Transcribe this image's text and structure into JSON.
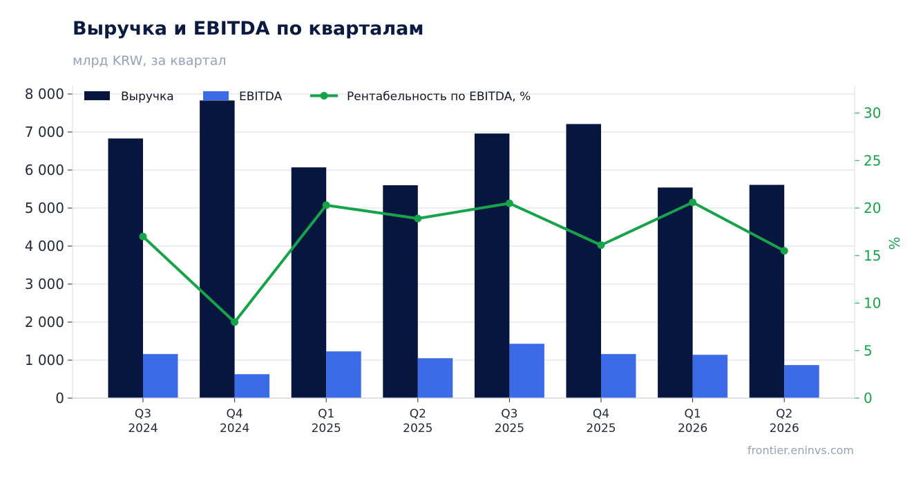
{
  "header": {
    "title": "Выручка и EBITDA по кварталам",
    "subtitle": "млрд KRW, за квартал"
  },
  "footer": {
    "source": "frontier.eninvs.com"
  },
  "colors": {
    "revenue": "#06163f",
    "ebitda": "#3b6be6",
    "margin": "#16a34a",
    "grid": "#e3e7ef"
  },
  "chart_data": {
    "type": "bar",
    "categories": [
      [
        "Q3",
        "2024"
      ],
      [
        "Q4",
        "2024"
      ],
      [
        "Q1",
        "2025"
      ],
      [
        "Q2",
        "2025"
      ],
      [
        "Q3",
        "2025"
      ],
      [
        "Q4",
        "2025"
      ],
      [
        "Q1",
        "2026"
      ],
      [
        "Q2",
        "2026"
      ]
    ],
    "series": [
      {
        "name": "Выручка",
        "type": "bar",
        "axis": "left",
        "values": [
          6830,
          7830,
          6070,
          5600,
          6960,
          7210,
          5540,
          5610
        ]
      },
      {
        "name": "EBITDA",
        "type": "bar",
        "axis": "left",
        "values": [
          1160,
          630,
          1230,
          1050,
          1430,
          1160,
          1140,
          870
        ]
      },
      {
        "name": "Рентабельность по EBITDA, %",
        "type": "line",
        "axis": "right",
        "values": [
          17.0,
          8.0,
          20.3,
          18.9,
          20.5,
          16.1,
          20.6,
          15.5
        ]
      }
    ],
    "y_left": {
      "min": 0,
      "max": 8000,
      "ticks": [
        0,
        1000,
        2000,
        3000,
        4000,
        5000,
        6000,
        7000,
        8000
      ],
      "tick_labels": [
        "0",
        "1 000",
        "2 000",
        "3 000",
        "4 000",
        "5 000",
        "6 000",
        "7 000",
        "8 000"
      ]
    },
    "y_right": {
      "label": "%",
      "ticks": [
        0,
        5,
        10,
        15,
        20,
        25,
        30
      ],
      "tick_labels": [
        "0",
        "5",
        "10",
        "15",
        "20",
        "25",
        "30"
      ]
    },
    "grid": true,
    "legend_position": "top-left"
  }
}
